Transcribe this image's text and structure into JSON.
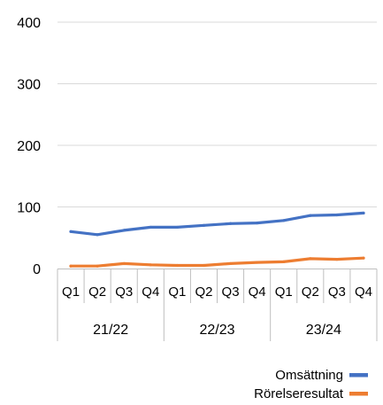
{
  "chart_data": {
    "type": "line",
    "title": "",
    "xlabel": "",
    "ylabel": "",
    "ylim": [
      0,
      400
    ],
    "yticks": [
      0,
      100,
      200,
      300,
      400
    ],
    "grid": true,
    "legend_position": "bottom-right",
    "groups": [
      {
        "label": "21/22",
        "categories": [
          "Q1",
          "Q2",
          "Q3",
          "Q4"
        ]
      },
      {
        "label": "22/23",
        "categories": [
          "Q1",
          "Q2",
          "Q3",
          "Q4"
        ]
      },
      {
        "label": "23/24",
        "categories": [
          "Q1",
          "Q2",
          "Q3",
          "Q4"
        ]
      }
    ],
    "series": [
      {
        "name": "Omsättning",
        "color": "#4472C4",
        "values": [
          60,
          55,
          62,
          67,
          67,
          70,
          73,
          74,
          78,
          86,
          87,
          90
        ]
      },
      {
        "name": "Rörelseresultat",
        "color": "#ED7D31",
        "values": [
          4,
          4,
          8,
          6,
          5,
          5,
          8,
          10,
          11,
          16,
          15,
          17
        ]
      }
    ]
  }
}
